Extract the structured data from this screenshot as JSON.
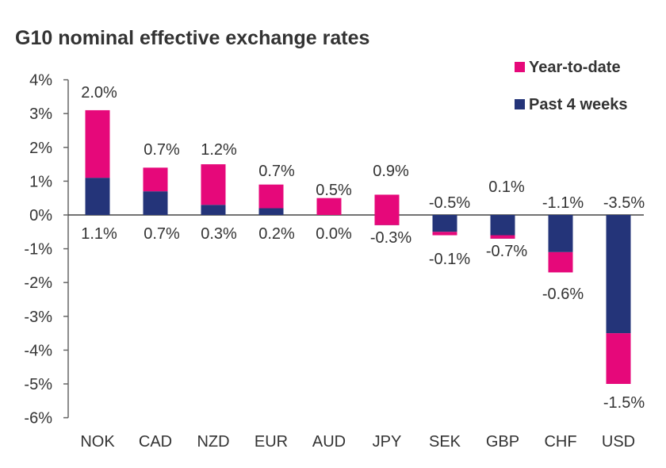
{
  "chart_data": {
    "type": "bar",
    "stacked": true,
    "title": "G10 nominal effective exchange rates",
    "categories": [
      "NOK",
      "CAD",
      "NZD",
      "EUR",
      "AUD",
      "JPY",
      "SEK",
      "GBP",
      "CHF",
      "USD"
    ],
    "series": [
      {
        "name": "Past 4 weeks",
        "color": "#243479",
        "values": [
          1.1,
          0.7,
          0.3,
          0.2,
          0.0,
          -0.3,
          -0.5,
          -0.7,
          -1.1,
          -3.5
        ],
        "labels": [
          "1.1%",
          "0.7%",
          "0.3%",
          "0.2%",
          "0.0%",
          "-0.3%",
          "-0.5%",
          "-0.7%",
          "-1.1%",
          "-3.5%"
        ]
      },
      {
        "name": "Year-to-date",
        "color": "#e6087a",
        "values": [
          2.0,
          0.7,
          1.2,
          0.7,
          0.5,
          0.9,
          -0.1,
          0.1,
          -0.6,
          -1.5
        ],
        "labels": [
          "2.0%",
          "0.7%",
          "1.2%",
          "0.7%",
          "0.5%",
          "0.9%",
          "-0.1%",
          "0.1%",
          "-0.6%",
          "-1.5%"
        ]
      }
    ],
    "legend_order": [
      "Year-to-date",
      "Past 4 weeks"
    ],
    "y_ticks": [
      {
        "value": 4,
        "label": "4%"
      },
      {
        "value": 3,
        "label": "3%"
      },
      {
        "value": 2,
        "label": "2%"
      },
      {
        "value": 1,
        "label": "1%"
      },
      {
        "value": 0,
        "label": "0%"
      },
      {
        "value": -1,
        "label": "-1%"
      },
      {
        "value": -2,
        "label": "-2%"
      },
      {
        "value": -3,
        "label": "-3%"
      },
      {
        "value": -4,
        "label": "-4%"
      },
      {
        "value": -5,
        "label": "-5%"
      },
      {
        "value": -6,
        "label": "-6%"
      }
    ],
    "ylim": [
      -6,
      4
    ],
    "xlabel": "",
    "ylabel": "",
    "grid": false,
    "legend_position": "top-right"
  }
}
